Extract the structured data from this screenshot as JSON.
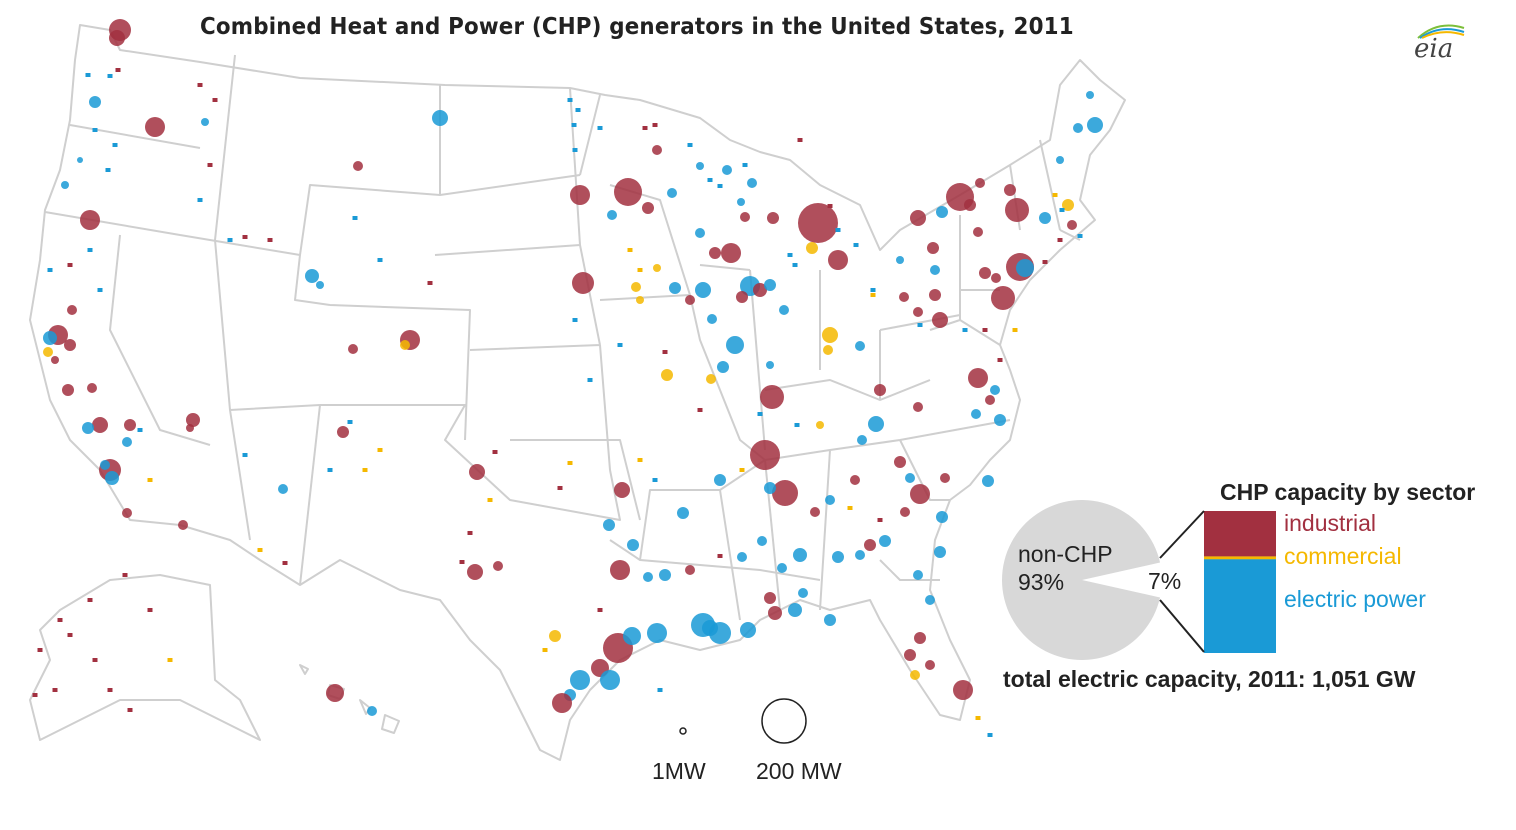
{
  "title": "Combined Heat and Power (CHP) generators in the United States, 2011",
  "logo_text": "eia",
  "size_legend": {
    "small": "1MW",
    "large": "200 MW"
  },
  "pie": {
    "non_chp_label": "non-CHP",
    "non_chp_pct": "93%",
    "chp_pct": "7%"
  },
  "bar_legend": {
    "title": "CHP capacity by sector",
    "industrial": "industrial",
    "commercial": "commercial",
    "electric": "electric power"
  },
  "total_label": "total electric capacity, 2011: 1,051 GW",
  "colors": {
    "industrial": "#a23040",
    "commercial": "#f5b800",
    "electric": "#1a9ad6",
    "pie_gray": "#d8d8d8",
    "state_border": "#cfcfcf"
  },
  "chart_data": {
    "type": "pie",
    "slices": [
      {
        "label": "non-CHP",
        "value": 93
      },
      {
        "label": "CHP",
        "value": 7
      }
    ],
    "chp_breakdown": [
      {
        "label": "industrial",
        "share": 0.32
      },
      {
        "label": "commercial",
        "share": 0.02
      },
      {
        "label": "electric power",
        "share": 0.66
      }
    ],
    "total": "1,051 GW"
  }
}
